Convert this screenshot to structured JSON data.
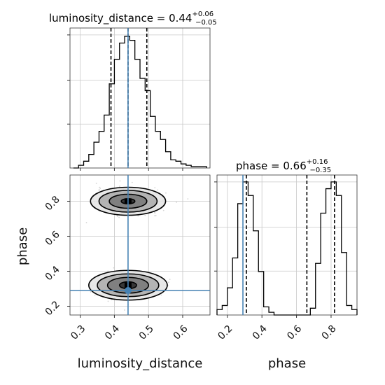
{
  "chart_data": [
    {
      "type": "histogram",
      "panel": "luminosity_distance-marginal",
      "title": {
        "name": "luminosity_distance",
        "median": "0.44",
        "plus": "+0.06",
        "minus": "−0.05"
      },
      "xlim": [
        0.27,
        0.68
      ],
      "ylim": [
        0,
        1.0
      ],
      "bin_edges": [
        0.28,
        0.295,
        0.31,
        0.325,
        0.34,
        0.355,
        0.37,
        0.385,
        0.4,
        0.415,
        0.43,
        0.445,
        0.46,
        0.475,
        0.49,
        0.505,
        0.52,
        0.535,
        0.55,
        0.565,
        0.58,
        0.595,
        0.61,
        0.625,
        0.64,
        0.655,
        0.67
      ],
      "counts": [
        0.0,
        0.02,
        0.05,
        0.1,
        0.19,
        0.27,
        0.39,
        0.62,
        0.8,
        0.92,
        0.97,
        0.94,
        0.8,
        0.66,
        0.57,
        0.38,
        0.27,
        0.21,
        0.12,
        0.06,
        0.05,
        0.03,
        0.02,
        0.01,
        0.01,
        0.01
      ],
      "quantiles": [
        0.39,
        0.44,
        0.495
      ],
      "truth": 0.44,
      "xticks": [
        0.3,
        0.4,
        0.5,
        0.6
      ],
      "yticks": [
        0.33,
        0.66,
        1.0
      ],
      "grid": true
    },
    {
      "type": "histogram",
      "panel": "phase-marginal",
      "title": {
        "name": "phase",
        "median": "0.66",
        "plus": "+0.16",
        "minus": "−0.35"
      },
      "xlim": [
        0.14,
        0.95
      ],
      "ylim": [
        0,
        1.0
      ],
      "bin_edges": [
        0.14,
        0.17,
        0.2,
        0.23,
        0.26,
        0.29,
        0.32,
        0.35,
        0.38,
        0.41,
        0.44,
        0.47,
        0.5,
        0.53,
        0.56,
        0.59,
        0.62,
        0.65,
        0.68,
        0.71,
        0.74,
        0.77,
        0.8,
        0.83,
        0.86,
        0.89,
        0.92,
        0.95
      ],
      "counts": [
        0.04,
        0.07,
        0.2,
        0.42,
        0.82,
        0.98,
        0.88,
        0.62,
        0.32,
        0.06,
        0.02,
        0.0,
        0.0,
        0.0,
        0.0,
        0.0,
        0.0,
        0.0,
        0.05,
        0.38,
        0.75,
        0.93,
        0.98,
        0.88,
        0.46,
        0.07,
        0.04
      ],
      "quantiles": [
        0.31,
        0.66,
        0.82
      ],
      "truth": 0.29,
      "xticks": [
        0.2,
        0.4,
        0.6,
        0.8
      ],
      "yticks": [
        0.33,
        0.66,
        1.0
      ],
      "grid": true
    },
    {
      "type": "scatter",
      "panel": "joint-density",
      "xlabel": "luminosity_distance",
      "ylabel": "phase",
      "xlim": [
        0.27,
        0.68
      ],
      "ylim": [
        0.15,
        0.95
      ],
      "xticks": [
        0.3,
        0.4,
        0.5,
        0.6
      ],
      "yticks": [
        0.2,
        0.4,
        0.6,
        0.8
      ],
      "truth": {
        "x": 0.44,
        "y": 0.29
      },
      "modes": [
        {
          "x": 0.44,
          "y": 0.8,
          "contour_radii": [
            [
              0.02,
              0.015
            ],
            [
              0.055,
              0.04
            ],
            [
              0.085,
              0.062
            ],
            [
              0.11,
              0.08
            ]
          ]
        },
        {
          "x": 0.44,
          "y": 0.32,
          "contour_radii": [
            [
              0.025,
              0.02
            ],
            [
              0.06,
              0.045
            ],
            [
              0.09,
              0.065
            ],
            [
              0.115,
              0.085
            ]
          ]
        }
      ],
      "grid": true
    }
  ],
  "labels": {
    "x_left": "luminosity_distance",
    "x_right": "phase",
    "y_left": "phase"
  },
  "colors": {
    "truth": "#4682b4",
    "hist": "#000000",
    "grid": "#c8c8c8",
    "quantile": "#000000"
  }
}
